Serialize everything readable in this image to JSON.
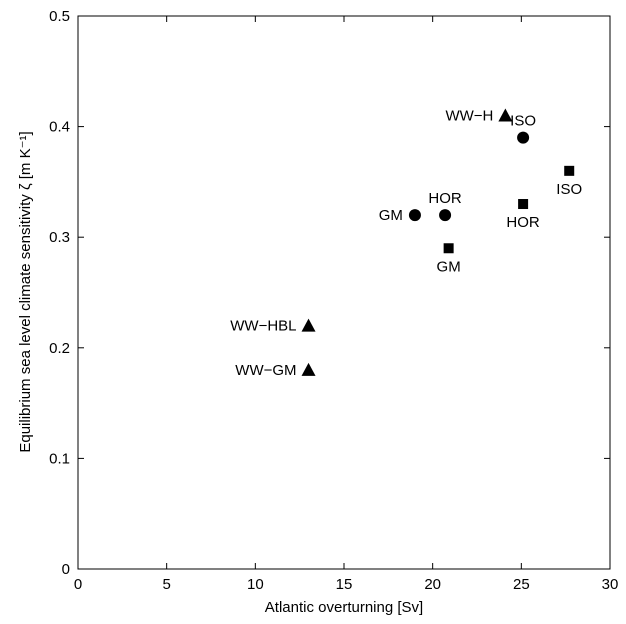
{
  "chart_data": {
    "type": "scatter",
    "xlabel": "Atlantic overturning [Sv]",
    "ylabel": "Equilibrium sea level climate sensitivity ζ [m K⁻¹]",
    "xlim": [
      0,
      30
    ],
    "ylim": [
      0,
      0.5
    ],
    "x_ticks": [
      0,
      5,
      10,
      15,
      20,
      25,
      30
    ],
    "y_ticks": [
      0,
      0.1,
      0.2,
      0.3,
      0.4,
      0.5
    ],
    "x_tick_labels": [
      "0",
      "5",
      "10",
      "15",
      "20",
      "25",
      "30"
    ],
    "y_tick_labels": [
      "0",
      "0.1",
      "0.2",
      "0.3",
      "0.4",
      "0.5"
    ],
    "grid": false,
    "legend": "none",
    "marker_color": "#000000",
    "series": [
      {
        "marker": "circle",
        "points": [
          {
            "label": "GM",
            "x": 19.0,
            "y": 0.32,
            "label_side": "left"
          },
          {
            "label": "HOR",
            "x": 20.7,
            "y": 0.32,
            "label_side": "above"
          },
          {
            "label": "ISO",
            "x": 25.1,
            "y": 0.39,
            "label_side": "above"
          }
        ]
      },
      {
        "marker": "square",
        "points": [
          {
            "label": "GM",
            "x": 20.9,
            "y": 0.29,
            "label_side": "below"
          },
          {
            "label": "HOR",
            "x": 25.1,
            "y": 0.33,
            "label_side": "below"
          },
          {
            "label": "ISO",
            "x": 27.7,
            "y": 0.36,
            "label_side": "below"
          }
        ]
      },
      {
        "marker": "triangle",
        "points": [
          {
            "label": "WW−H",
            "x": 24.1,
            "y": 0.41,
            "label_side": "left"
          },
          {
            "label": "WW−HBL",
            "x": 13.0,
            "y": 0.22,
            "label_side": "left"
          },
          {
            "label": "WW−GM",
            "x": 13.0,
            "y": 0.18,
            "label_side": "left"
          }
        ]
      }
    ]
  }
}
